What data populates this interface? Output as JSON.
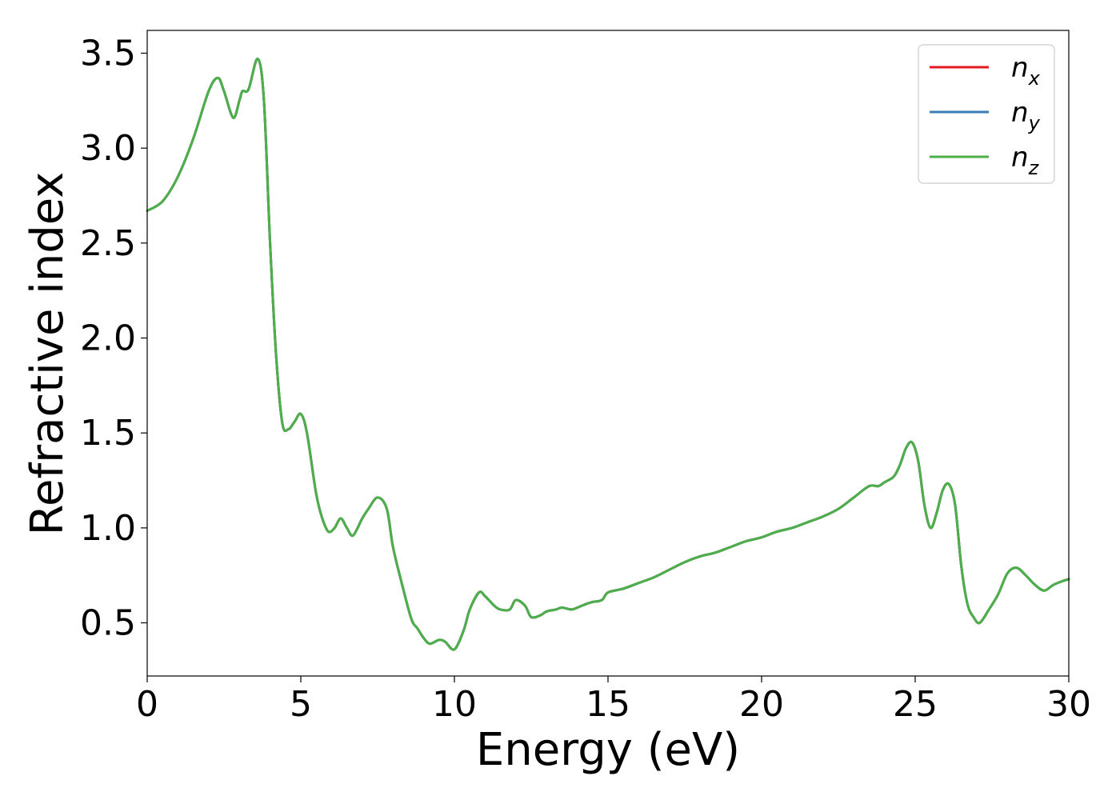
{
  "chart_data": {
    "type": "line",
    "title": "",
    "xlabel": "Energy (eV)",
    "ylabel": "Refractive index",
    "xlim": [
      0,
      30
    ],
    "ylim": [
      0.22,
      3.62
    ],
    "xticks": [
      0,
      5,
      10,
      15,
      20,
      25,
      30
    ],
    "xtick_labels": [
      "0",
      "5",
      "10",
      "15",
      "20",
      "25",
      "30"
    ],
    "yticks": [
      0.5,
      1.0,
      1.5,
      2.0,
      2.5,
      3.0,
      3.5
    ],
    "ytick_labels": [
      "0.5",
      "1.0",
      "1.5",
      "2.0",
      "2.5",
      "3.0",
      "3.5"
    ],
    "grid": false,
    "legend_position": "top-right",
    "x": [
      0,
      0.5,
      1.0,
      1.5,
      2.0,
      2.3,
      2.5,
      2.8,
      3.0,
      3.1,
      3.3,
      3.6,
      3.8,
      4.0,
      4.2,
      4.4,
      4.6,
      4.8,
      5.0,
      5.2,
      5.5,
      5.7,
      5.9,
      6.1,
      6.3,
      6.5,
      6.7,
      7.0,
      7.2,
      7.5,
      7.8,
      8.0,
      8.3,
      8.6,
      8.8,
      9.0,
      9.2,
      9.5,
      9.7,
      10.0,
      10.3,
      10.5,
      10.8,
      11.0,
      11.3,
      11.5,
      11.8,
      12.0,
      12.3,
      12.5,
      12.8,
      13.0,
      13.3,
      13.5,
      13.8,
      14.0,
      14.3,
      14.5,
      14.8,
      15.0,
      15.5,
      16.0,
      16.5,
      17.0,
      17.5,
      18.0,
      18.5,
      19.0,
      19.5,
      20.0,
      20.5,
      21.0,
      21.5,
      22.0,
      22.5,
      23.0,
      23.5,
      23.8,
      24.0,
      24.3,
      24.5,
      24.7,
      24.9,
      25.1,
      25.3,
      25.5,
      25.7,
      25.9,
      26.1,
      26.3,
      26.5,
      26.7,
      26.9,
      27.1,
      27.4,
      27.7,
      28.0,
      28.3,
      28.6,
      28.9,
      29.2,
      29.5,
      29.8,
      30.0
    ],
    "series": [
      {
        "name": "n_x",
        "color": "#e41a1c",
        "values": [
          2.67,
          2.72,
          2.85,
          3.05,
          3.3,
          3.37,
          3.3,
          3.16,
          3.25,
          3.3,
          3.31,
          3.47,
          3.25,
          2.5,
          1.9,
          1.55,
          1.52,
          1.56,
          1.6,
          1.5,
          1.18,
          1.05,
          0.98,
          1.0,
          1.05,
          1.0,
          0.96,
          1.05,
          1.1,
          1.16,
          1.1,
          0.9,
          0.7,
          0.52,
          0.47,
          0.42,
          0.39,
          0.41,
          0.4,
          0.36,
          0.46,
          0.57,
          0.66,
          0.64,
          0.59,
          0.57,
          0.57,
          0.62,
          0.59,
          0.53,
          0.54,
          0.56,
          0.57,
          0.58,
          0.57,
          0.58,
          0.6,
          0.61,
          0.62,
          0.66,
          0.68,
          0.71,
          0.74,
          0.78,
          0.82,
          0.85,
          0.87,
          0.9,
          0.93,
          0.95,
          0.98,
          1.0,
          1.03,
          1.06,
          1.1,
          1.16,
          1.22,
          1.22,
          1.24,
          1.27,
          1.33,
          1.42,
          1.45,
          1.35,
          1.12,
          1.0,
          1.08,
          1.2,
          1.23,
          1.12,
          0.8,
          0.6,
          0.53,
          0.5,
          0.57,
          0.65,
          0.76,
          0.79,
          0.75,
          0.7,
          0.67,
          0.7,
          0.72,
          0.73
        ]
      },
      {
        "name": "n_y",
        "color": "#377eb8",
        "values": [
          2.67,
          2.72,
          2.85,
          3.05,
          3.3,
          3.37,
          3.3,
          3.16,
          3.25,
          3.3,
          3.31,
          3.47,
          3.25,
          2.5,
          1.9,
          1.55,
          1.52,
          1.56,
          1.6,
          1.5,
          1.18,
          1.05,
          0.98,
          1.0,
          1.05,
          1.0,
          0.96,
          1.05,
          1.1,
          1.16,
          1.1,
          0.9,
          0.7,
          0.52,
          0.47,
          0.42,
          0.39,
          0.41,
          0.4,
          0.36,
          0.46,
          0.57,
          0.66,
          0.64,
          0.59,
          0.57,
          0.57,
          0.62,
          0.59,
          0.53,
          0.54,
          0.56,
          0.57,
          0.58,
          0.57,
          0.58,
          0.6,
          0.61,
          0.62,
          0.66,
          0.68,
          0.71,
          0.74,
          0.78,
          0.82,
          0.85,
          0.87,
          0.9,
          0.93,
          0.95,
          0.98,
          1.0,
          1.03,
          1.06,
          1.1,
          1.16,
          1.22,
          1.22,
          1.24,
          1.27,
          1.33,
          1.42,
          1.45,
          1.35,
          1.12,
          1.0,
          1.08,
          1.2,
          1.23,
          1.12,
          0.8,
          0.6,
          0.53,
          0.5,
          0.57,
          0.65,
          0.76,
          0.79,
          0.75,
          0.7,
          0.67,
          0.7,
          0.72,
          0.73
        ]
      },
      {
        "name": "n_z",
        "color": "#4daf4a",
        "values": [
          2.67,
          2.72,
          2.85,
          3.05,
          3.3,
          3.37,
          3.3,
          3.16,
          3.25,
          3.3,
          3.31,
          3.47,
          3.25,
          2.5,
          1.9,
          1.55,
          1.52,
          1.56,
          1.6,
          1.5,
          1.18,
          1.05,
          0.98,
          1.0,
          1.05,
          1.0,
          0.96,
          1.05,
          1.1,
          1.16,
          1.1,
          0.9,
          0.7,
          0.52,
          0.47,
          0.42,
          0.39,
          0.41,
          0.4,
          0.36,
          0.46,
          0.57,
          0.66,
          0.64,
          0.59,
          0.57,
          0.57,
          0.62,
          0.59,
          0.53,
          0.54,
          0.56,
          0.57,
          0.58,
          0.57,
          0.58,
          0.6,
          0.61,
          0.62,
          0.66,
          0.68,
          0.71,
          0.74,
          0.78,
          0.82,
          0.85,
          0.87,
          0.9,
          0.93,
          0.95,
          0.98,
          1.0,
          1.03,
          1.06,
          1.1,
          1.16,
          1.22,
          1.22,
          1.24,
          1.27,
          1.33,
          1.42,
          1.45,
          1.35,
          1.12,
          1.0,
          1.08,
          1.2,
          1.23,
          1.12,
          0.8,
          0.6,
          0.53,
          0.5,
          0.57,
          0.65,
          0.76,
          0.79,
          0.75,
          0.7,
          0.67,
          0.7,
          0.72,
          0.73
        ]
      }
    ],
    "legend": [
      {
        "base": "n",
        "sub": "x"
      },
      {
        "base": "n",
        "sub": "y"
      },
      {
        "base": "n",
        "sub": "z"
      }
    ]
  }
}
